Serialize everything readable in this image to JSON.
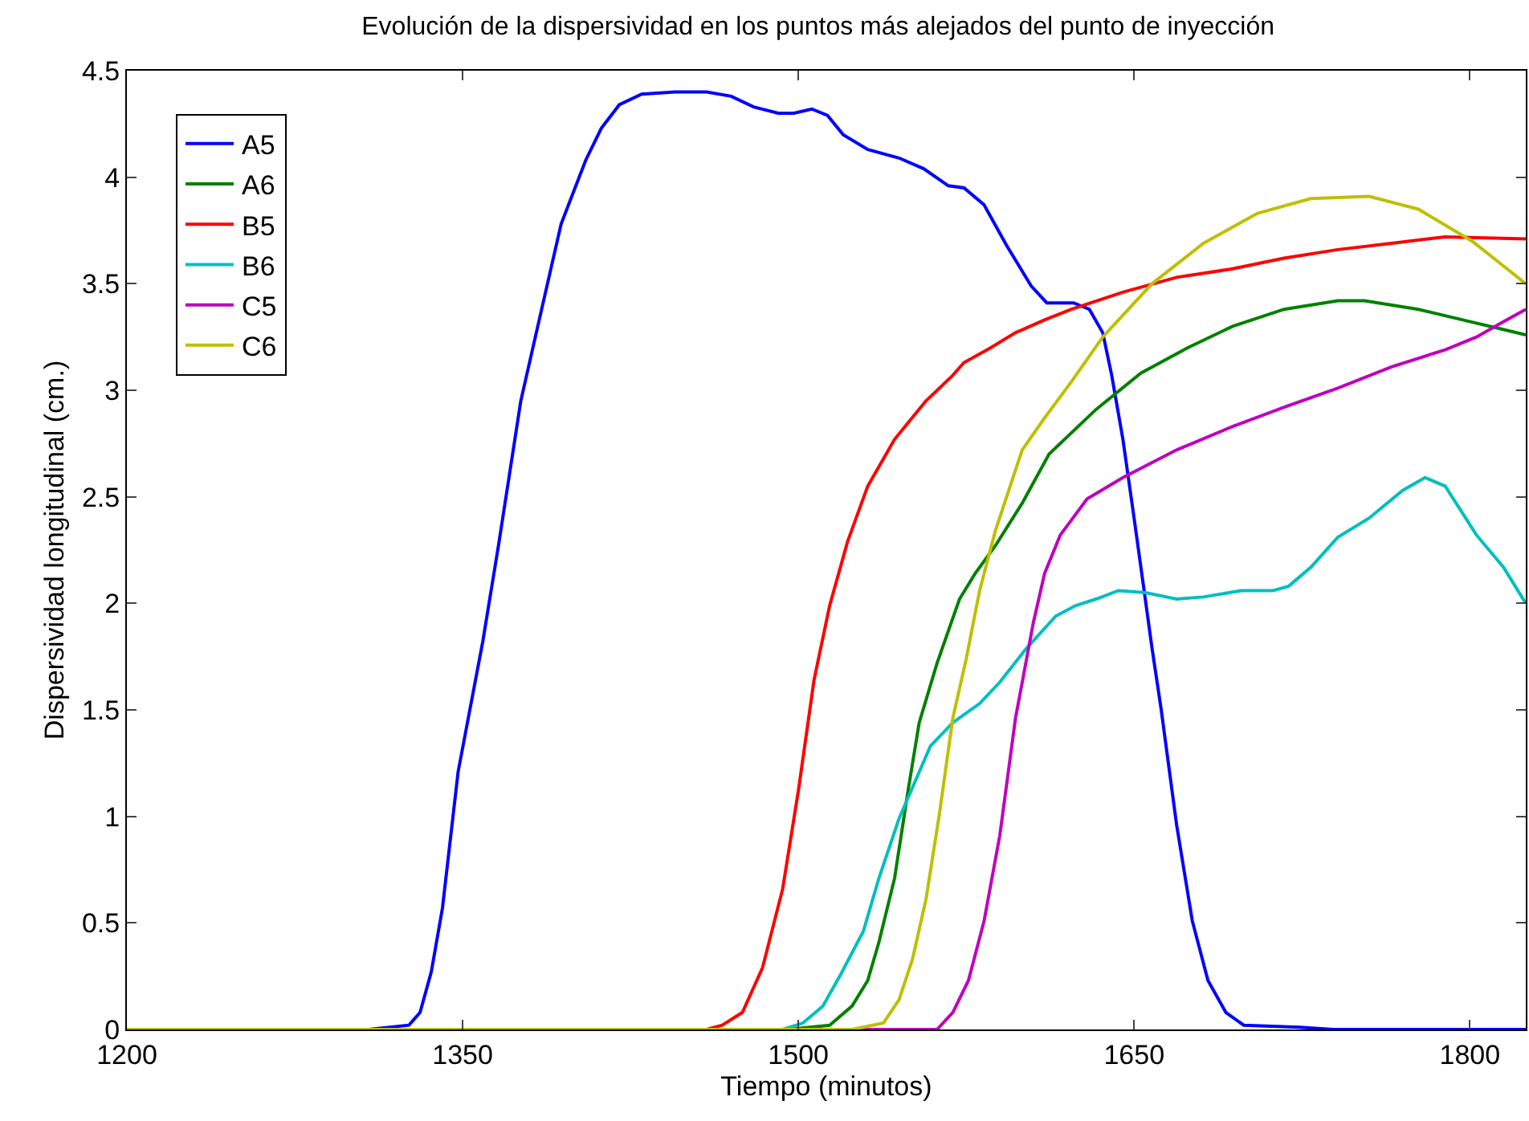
{
  "chart_data": {
    "type": "line",
    "title": "Evolución de la dispersividad en los puntos más alejados del punto de inyección",
    "xlabel": "Tiempo (minutos)",
    "ylabel": "Dispersividad longitudinal (cm.)",
    "xlim": [
      1200,
      1825
    ],
    "xticks": [
      1200,
      1350,
      1500,
      1650,
      1800
    ],
    "ylim": [
      0,
      4.5
    ],
    "yticks": [
      0,
      0.5,
      1,
      1.5,
      2,
      2.5,
      3,
      3.5,
      4,
      4.5
    ],
    "grid": false,
    "legend": "top left",
    "marker": "none",
    "line_style": "solid",
    "series": [
      {
        "name": "A5",
        "color": "#0000ff",
        "x": [
          1200,
          1308,
          1326,
          1331,
          1336,
          1341,
          1348,
          1359,
          1366,
          1376,
          1384,
          1394,
          1405,
          1412,
          1420,
          1430,
          1445,
          1459,
          1470,
          1480,
          1491,
          1498,
          1506,
          1513,
          1520,
          1531,
          1545,
          1556,
          1567,
          1574,
          1583,
          1593,
          1604,
          1611,
          1623,
          1630,
          1636,
          1640,
          1645,
          1650,
          1655,
          1658,
          1662,
          1669,
          1676,
          1683,
          1691,
          1699,
          1724,
          1739,
          1825
        ],
        "values": [
          0,
          0,
          0.02,
          0.08,
          0.27,
          0.57,
          1.21,
          1.82,
          2.27,
          2.95,
          3.32,
          3.78,
          4.08,
          4.23,
          4.34,
          4.39,
          4.4,
          4.4,
          4.38,
          4.33,
          4.3,
          4.3,
          4.32,
          4.29,
          4.2,
          4.13,
          4.09,
          4.04,
          3.96,
          3.95,
          3.87,
          3.68,
          3.49,
          3.41,
          3.41,
          3.38,
          3.27,
          3.07,
          2.77,
          2.4,
          2.02,
          1.79,
          1.51,
          0.96,
          0.51,
          0.23,
          0.08,
          0.02,
          0.01,
          0,
          0
        ]
      },
      {
        "name": "A6",
        "color": "#008000",
        "x": [
          1200,
          1495,
          1514,
          1524,
          1531,
          1536,
          1543,
          1549,
          1554,
          1562,
          1572,
          1579,
          1588,
          1600,
          1612,
          1633,
          1653,
          1674,
          1694,
          1717,
          1741,
          1753,
          1777,
          1801,
          1813,
          1825
        ],
        "values": [
          0,
          0,
          0.02,
          0.11,
          0.23,
          0.41,
          0.71,
          1.12,
          1.44,
          1.72,
          2.02,
          2.14,
          2.27,
          2.47,
          2.7,
          2.91,
          3.08,
          3.2,
          3.3,
          3.38,
          3.42,
          3.42,
          3.38,
          3.32,
          3.29,
          3.26
        ]
      },
      {
        "name": "B5",
        "color": "#ff0000",
        "x": [
          1200,
          1459,
          1466,
          1475,
          1484,
          1493,
          1500,
          1507,
          1514,
          1522,
          1531,
          1543,
          1557,
          1569,
          1574,
          1586,
          1597,
          1610,
          1622,
          1645,
          1669,
          1694,
          1717,
          1741,
          1765,
          1789,
          1825
        ],
        "values": [
          0,
          0,
          0.02,
          0.08,
          0.29,
          0.66,
          1.12,
          1.64,
          1.99,
          2.29,
          2.55,
          2.77,
          2.95,
          3.07,
          3.13,
          3.2,
          3.27,
          3.33,
          3.38,
          3.46,
          3.53,
          3.57,
          3.62,
          3.66,
          3.69,
          3.72,
          3.71
        ]
      },
      {
        "name": "B6",
        "color": "#00bfbf",
        "x": [
          1200,
          1493,
          1502,
          1511,
          1519,
          1529,
          1536,
          1545,
          1552,
          1559,
          1569,
          1581,
          1590,
          1602,
          1615,
          1624,
          1633,
          1643,
          1655,
          1669,
          1681,
          1698,
          1712,
          1719,
          1729,
          1741,
          1755,
          1770,
          1780,
          1789,
          1803,
          1815,
          1825
        ],
        "values": [
          0,
          0,
          0.03,
          0.11,
          0.26,
          0.46,
          0.71,
          0.99,
          1.16,
          1.33,
          1.44,
          1.53,
          1.63,
          1.79,
          1.94,
          1.99,
          2.02,
          2.06,
          2.05,
          2.02,
          2.03,
          2.06,
          2.06,
          2.08,
          2.17,
          2.31,
          2.4,
          2.53,
          2.59,
          2.55,
          2.32,
          2.17,
          2
        ]
      },
      {
        "name": "C5",
        "color": "#bf00bf",
        "x": [
          1200,
          1562,
          1569,
          1576,
          1583,
          1590,
          1597,
          1605,
          1610,
          1617,
          1629,
          1645,
          1669,
          1694,
          1717,
          1741,
          1765,
          1789,
          1803,
          1813,
          1825
        ],
        "values": [
          0,
          0,
          0.08,
          0.23,
          0.51,
          0.91,
          1.46,
          1.91,
          2.14,
          2.32,
          2.49,
          2.59,
          2.72,
          2.83,
          2.92,
          3.01,
          3.11,
          3.19,
          3.25,
          3.31,
          3.38
        ]
      },
      {
        "name": "C6",
        "color": "#bfbf00",
        "x": [
          1200,
          1524,
          1538,
          1545,
          1551,
          1557,
          1563,
          1569,
          1575,
          1581,
          1588,
          1600,
          1610,
          1622,
          1636,
          1658,
          1681,
          1705,
          1729,
          1755,
          1777,
          1801,
          1813,
          1825
        ],
        "values": [
          0,
          0,
          0.03,
          0.14,
          0.33,
          0.61,
          1.01,
          1.46,
          1.74,
          2.06,
          2.34,
          2.72,
          2.87,
          3.04,
          3.25,
          3.5,
          3.69,
          3.83,
          3.9,
          3.91,
          3.85,
          3.7,
          3.6,
          3.5
        ]
      }
    ]
  }
}
